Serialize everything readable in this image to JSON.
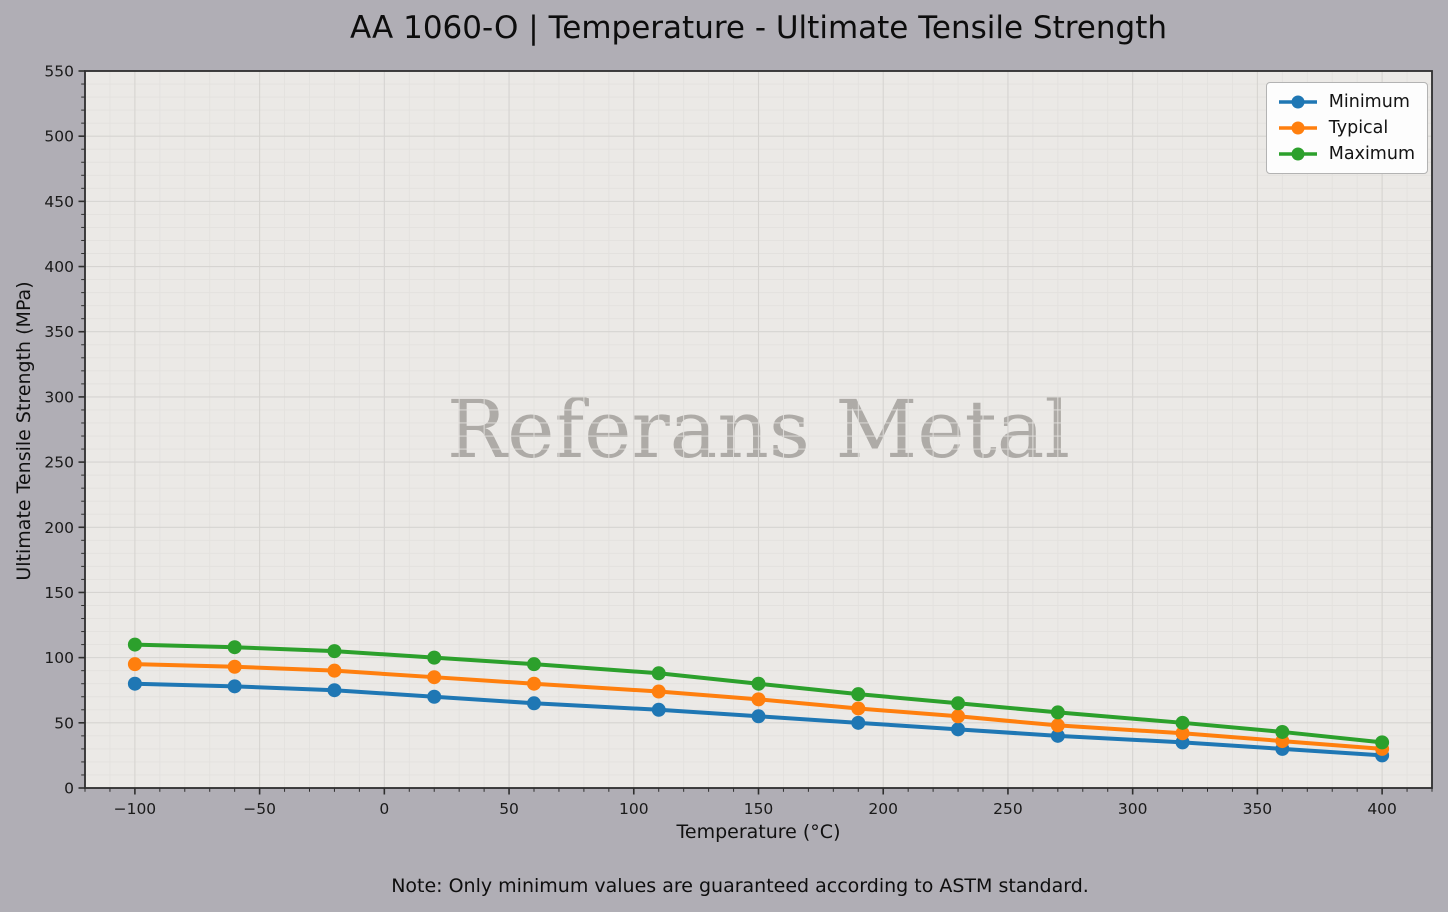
{
  "figure": {
    "title": "AA 1060-O | Temperature - Ultimate Tensile Strength",
    "note": "Note: Only minimum values are guaranteed according to ASTM standard.",
    "watermark": "Referans Metal"
  },
  "chart_data": {
    "type": "line",
    "title": "AA 1060-O | Temperature - Ultimate Tensile Strength",
    "xlabel": "Temperature (°C)",
    "ylabel": "Ultimate Tensile Strength (MPa)",
    "x": [
      -100,
      -60,
      -20,
      20,
      60,
      110,
      150,
      190,
      230,
      270,
      320,
      360,
      400
    ],
    "series": [
      {
        "name": "Minimum",
        "color": "#1f77b4",
        "values": [
          80,
          78,
          75,
          70,
          65,
          60,
          55,
          50,
          45,
          40,
          35,
          30,
          25
        ]
      },
      {
        "name": "Typical",
        "color": "#ff7f0e",
        "values": [
          95,
          93,
          90,
          85,
          80,
          74,
          68,
          61,
          55,
          48,
          42,
          36,
          30
        ]
      },
      {
        "name": "Maximum",
        "color": "#2ca02c",
        "values": [
          110,
          108,
          105,
          100,
          95,
          88,
          80,
          72,
          65,
          58,
          50,
          43,
          35
        ]
      }
    ],
    "xlim": [
      -120,
      420
    ],
    "ylim": [
      0,
      550
    ],
    "x_ticks": [
      -100,
      -50,
      0,
      50,
      100,
      150,
      200,
      250,
      300,
      350,
      400
    ],
    "y_ticks": [
      0,
      50,
      100,
      150,
      200,
      250,
      300,
      350,
      400,
      450,
      500,
      550
    ],
    "minor_tick_step": 10,
    "grid": "major and minor gridlines on",
    "legend_position": "upper right",
    "legend_entries": [
      "Minimum",
      "Typical",
      "Maximum"
    ],
    "marker": "circle",
    "watermark": "Referans Metal",
    "note": "Note: Only minimum values are guaranteed according to ASTM standard."
  },
  "colors": {
    "outer_background": "#b0aeb5",
    "plot_background": "#ebe9e6",
    "major_grid": "#d6d4d1",
    "minor_grid": "#e3e1de",
    "spine": "#2e2e2e",
    "tick_label": "#1a1a1a",
    "series_minimum": "#1f77b4",
    "series_typical": "#ff7f0e",
    "series_maximum": "#2ca02c",
    "watermark_gray": "#7d7a75"
  }
}
